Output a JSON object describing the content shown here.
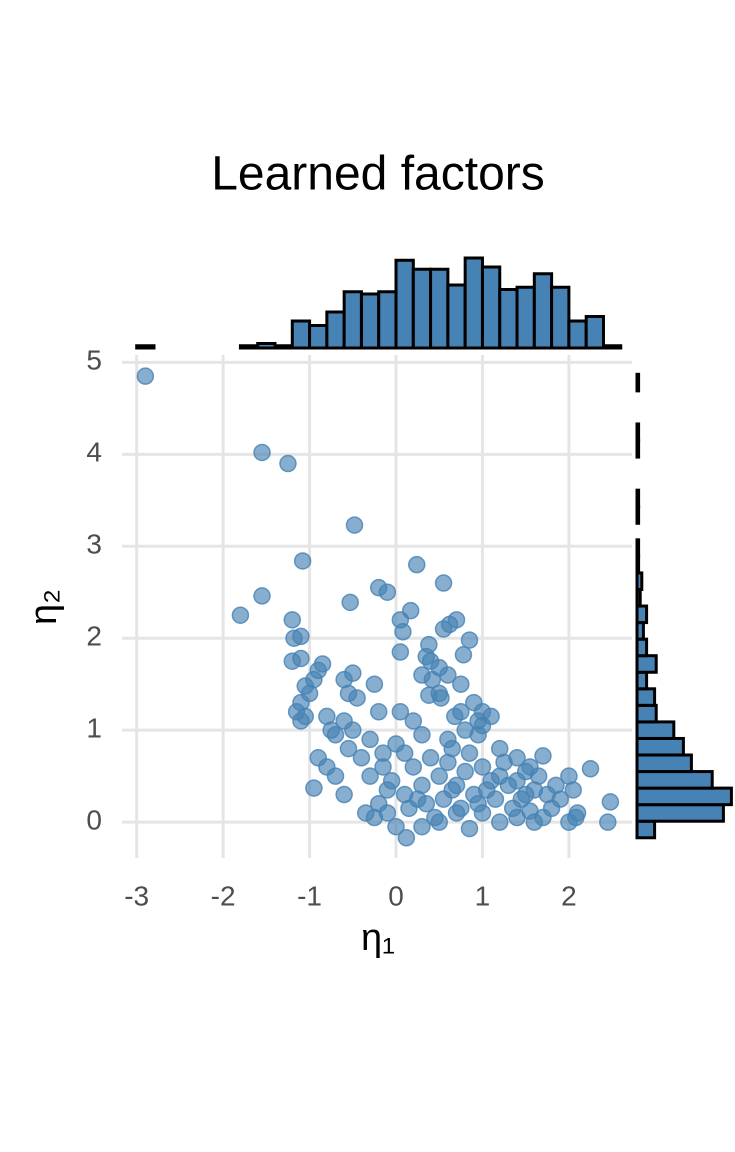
{
  "chart_data": [
    {
      "type": "scatter",
      "title": "Learned factors",
      "x_label": "η₁",
      "y_label": "η₂",
      "color": "#4682b4",
      "grid": true,
      "xlim": [
        -3.17,
        2.73
      ],
      "ylim": [
        -0.39,
        5.08
      ],
      "xticks": [
        -3,
        -2,
        -1,
        0,
        1,
        2
      ],
      "yticks": [
        0,
        1,
        2,
        3,
        4,
        5
      ],
      "x": [
        -2.9,
        -1.55,
        -1.25,
        -0.48,
        -1.08,
        0.24,
        0.55,
        -0.2,
        -0.1,
        -1.55,
        -1.8,
        -0.53,
        0.05,
        0.17,
        0.7,
        0.62,
        0.55,
        -1.2,
        -1.18,
        -1.1,
        0.08,
        0.85,
        0.38,
        0.05,
        0.78,
        -1.2,
        -1.1,
        0.35,
        0.4,
        0.5,
        0.6,
        -0.85,
        -0.9,
        -0.5,
        -0.6,
        -0.25,
        0.3,
        0.42,
        0.75,
        -1.05,
        -0.95,
        -1.1,
        -1.0,
        -1.15,
        -1.1,
        -1.05,
        -0.55,
        -0.45,
        0.38,
        0.5,
        0.52,
        0.9,
        1.0,
        0.68,
        0.75,
        -0.2,
        0.05,
        0.2,
        -0.8,
        -0.75,
        -0.7,
        -0.6,
        -0.5,
        -0.3,
        -0.15,
        0.0,
        0.3,
        0.6,
        0.95,
        1.0,
        1.2,
        1.4,
        1.55,
        1.7,
        2.25,
        2.0,
        2.05,
        2.1,
        2.08,
        2.0,
        2.45,
        2.48,
        -0.9,
        -0.8,
        -0.7,
        -0.6,
        -0.95,
        -0.3,
        -0.2,
        -0.35,
        -0.25,
        0.0,
        0.12,
        0.3,
        0.5,
        0.7,
        0.85,
        1.0,
        1.2,
        1.4,
        1.6,
        1.8,
        1.5,
        1.3,
        1.1,
        0.9,
        0.7,
        0.5,
        0.3,
        0.1,
        -0.1,
        0.2,
        0.4,
        0.6,
        0.8,
        1.0,
        1.2,
        1.4,
        1.6,
        1.75,
        1.9,
        0.15,
        0.35,
        0.55,
        0.75,
        0.95,
        1.15,
        1.35,
        1.55,
        1.7,
        -0.4,
        -0.15,
        0.1,
        0.65,
        0.85,
        1.25,
        1.5,
        -0.05,
        0.25,
        0.45,
        0.65,
        1.05,
        1.45,
        1.65,
        1.85,
        -0.55,
        -0.1,
        0.8,
        1.1,
        0.95
      ],
      "y": [
        4.85,
        4.02,
        3.9,
        3.23,
        2.84,
        2.8,
        2.6,
        2.55,
        2.5,
        2.46,
        2.25,
        2.39,
        2.2,
        2.3,
        2.2,
        2.15,
        2.1,
        2.2,
        2.0,
        2.02,
        2.07,
        1.98,
        1.93,
        1.85,
        1.82,
        1.75,
        1.78,
        1.8,
        1.75,
        1.68,
        1.6,
        1.72,
        1.65,
        1.62,
        1.55,
        1.5,
        1.6,
        1.55,
        1.5,
        1.48,
        1.55,
        1.3,
        1.4,
        1.2,
        1.1,
        1.15,
        1.4,
        1.35,
        1.38,
        1.4,
        1.35,
        1.3,
        1.2,
        1.15,
        1.2,
        1.2,
        1.2,
        1.1,
        1.15,
        1.0,
        0.95,
        1.1,
        1.0,
        0.9,
        0.75,
        0.85,
        0.95,
        0.9,
        0.95,
        1.05,
        0.8,
        0.7,
        0.6,
        0.72,
        0.58,
        0.5,
        0.35,
        0.1,
        0.05,
        0.0,
        0.0,
        0.22,
        0.7,
        0.6,
        0.5,
        0.3,
        0.37,
        0.5,
        0.2,
        0.1,
        0.05,
        -0.05,
        -0.17,
        -0.05,
        0.0,
        0.1,
        -0.07,
        0.1,
        0.0,
        0.05,
        0.0,
        0.15,
        0.3,
        0.4,
        0.45,
        0.3,
        0.4,
        0.5,
        0.4,
        0.3,
        0.35,
        0.6,
        0.7,
        0.65,
        0.55,
        0.6,
        0.5,
        0.45,
        0.35,
        0.3,
        0.25,
        0.15,
        0.2,
        0.25,
        0.15,
        0.2,
        0.25,
        0.15,
        0.12,
        0.05,
        0.7,
        0.6,
        0.75,
        0.8,
        0.75,
        0.65,
        0.55,
        0.45,
        0.25,
        0.05,
        0.35,
        0.35,
        0.25,
        0.5,
        0.4,
        0.8,
        0.1,
        1.0,
        1.15,
        1.1
      ]
    },
    {
      "type": "histogram",
      "orientation": "vertical",
      "color": "#4682b4",
      "xlim": [
        -3.17,
        2.73
      ],
      "ylim": [
        0,
        40
      ],
      "bins": [
        -3.0,
        -2.8,
        -2.6,
        -2.4,
        -2.2,
        -2.0,
        -1.8,
        -1.6,
        -1.4,
        -1.2,
        -1.0,
        -0.8,
        -0.6,
        -0.4,
        -0.2,
        0.0,
        0.2,
        0.4,
        0.6,
        0.8,
        1.0,
        1.2,
        1.4,
        1.6,
        1.8,
        2.0,
        2.2,
        2.4,
        2.6
      ],
      "values": [
        1,
        0,
        0,
        0,
        0,
        0,
        1,
        2,
        1,
        12,
        10,
        16,
        25,
        24,
        25,
        39,
        35,
        35,
        28,
        40,
        36,
        26,
        27,
        33,
        27,
        12,
        14,
        1
      ]
    },
    {
      "type": "histogram",
      "orientation": "horizontal",
      "color": "#4682b4",
      "ylim": [
        -0.39,
        5.08
      ],
      "xlim": [
        0,
        60
      ],
      "bins": [
        -0.17,
        0.01,
        0.19,
        0.37,
        0.55,
        0.73,
        0.91,
        1.09,
        1.27,
        1.45,
        1.63,
        1.81,
        1.99,
        2.17,
        2.35,
        2.53,
        2.71,
        2.89,
        3.07,
        3.25,
        3.43,
        3.61,
        3.79,
        3.97,
        4.15,
        4.33,
        4.51,
        4.69,
        4.87
      ],
      "values": [
        11,
        54,
        59,
        47,
        34,
        29,
        23,
        12,
        11,
        6,
        12,
        6,
        4,
        6,
        2,
        3,
        1,
        1,
        0,
        1,
        1,
        0,
        0,
        1,
        1,
        0,
        0,
        1
      ]
    }
  ]
}
